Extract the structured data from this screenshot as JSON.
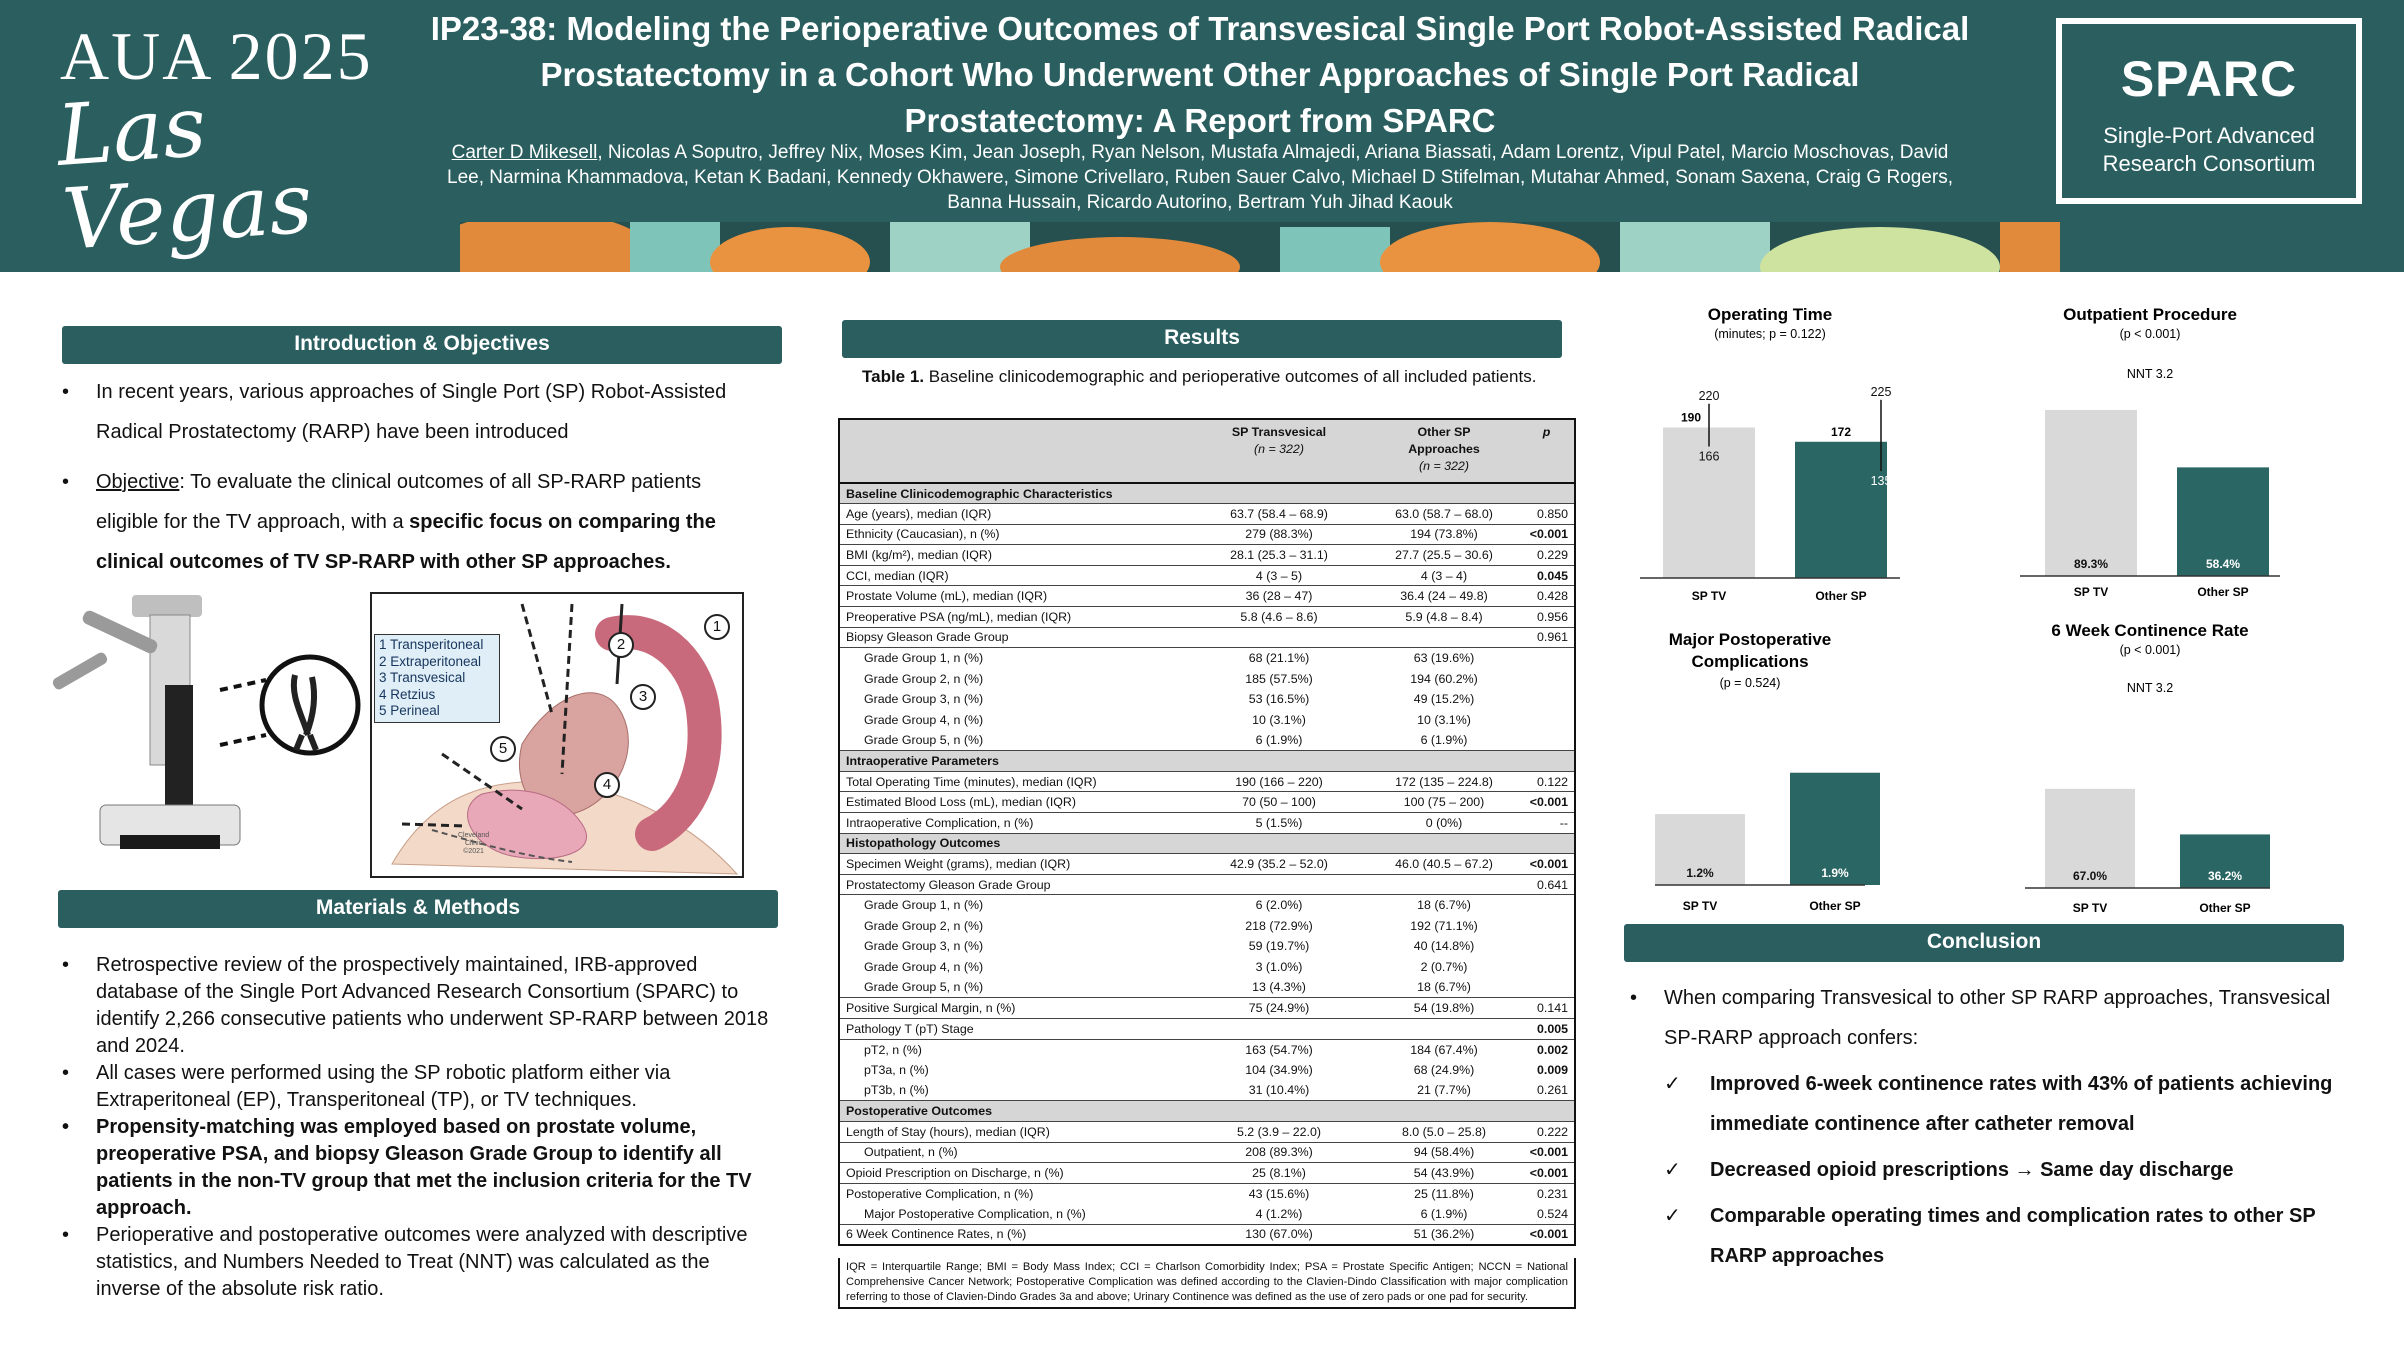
{
  "header": {
    "brand_top": "AUA 2025",
    "brand_bottom": "Las Vegas",
    "title": "IP23-38: Modeling the Perioperative Outcomes of Transvesical Single Port Robot-Assisted Radical Prostatectomy in a Cohort Who Underwent Other Approaches of Single Port Radical Prostatectomy: A Report from SPARC",
    "first_author": "Carter D Mikesell",
    "other_authors": ", Nicolas A Soputro, Jeffrey Nix, Moses Kim, Jean Joseph, Ryan Nelson, Mustafa Almajedi, Ariana Biassati, Adam Lorentz, Vipul Patel, Marcio Moschovas, David Lee, Narmina Khammadova, Ketan K Badani, Kennedy Okhawere, Simone Crivellaro, Ruben Sauer Calvo, Michael D Stifelman, Mutahar Ahmed, Sonam Saxena, Craig G Rogers, Banna Hussain, Ricardo Autorino, Bertram Yuh Jihad Kaouk",
    "sparc_title": "SPARC",
    "sparc_sub_1": "Single-Port Advanced",
    "sparc_sub_2": "Research Consortium"
  },
  "intro": {
    "heading": "Introduction & Objectives",
    "bullet1": "In recent years, various approaches of Single Port (SP) Robot-Assisted Radical Prostatectomy (RARP) have been introduced",
    "objective_label": "Objective",
    "objective_text": ": To evaluate the clinical outcomes of all SP-RARP patients eligible for the TV approach, with a ",
    "objective_bold": "specific focus on comparing the clinical outcomes of TV SP-RARP with other SP approaches."
  },
  "figure": {
    "legend": [
      "1 Transperitoneal",
      "2 Extraperitoneal",
      "3 Transvesical",
      "4 Retzius",
      "5 Perineal"
    ],
    "markers": [
      "1",
      "2",
      "3",
      "4",
      "5"
    ],
    "credit_1": "Cleveland",
    "credit_2": "Clinic",
    "credit_3": "©2021"
  },
  "methods": {
    "heading": "Materials & Methods",
    "b1": "Retrospective review of the prospectively maintained, IRB-approved database of the Single Port Advanced Research Consortium (SPARC) to identify 2,266 consecutive patients who underwent SP-RARP between 2018 and 2024.",
    "b2": "All cases were performed using the SP robotic platform either via Extraperitoneal (EP), Transperitoneal (TP), or TV techniques.",
    "b3": "Propensity-matching was employed based on prostate volume, preoperative PSA, and biopsy Gleason Grade Group to identify all patients in the non-TV group that met the inclusion criteria for the TV approach.",
    "b4": "Perioperative and postoperative outcomes were analyzed with descriptive statistics, and Numbers Needed to Treat (NNT) was calculated as the inverse of the absolute risk ratio."
  },
  "results": {
    "heading": "Results",
    "caption_bold": "Table 1.",
    "caption_text": " Baseline clinicodemographic and perioperative outcomes of all included patients.",
    "col_headers": {
      "c2_line1": "SP Transvesical",
      "c2_line2": "(n = 322)",
      "c3_line1": "Other SP",
      "c3_line2": "Approaches",
      "c3_line3": "(n = 322)",
      "c4": "p"
    },
    "rows": [
      {
        "type": "sec",
        "label": "Baseline Clinicodemographic Characteristics",
        "a": "",
        "b": "",
        "p": "",
        "bold": false
      },
      {
        "type": "row",
        "label": "Age (years), median (IQR)",
        "a": "63.7 (58.4 – 68.9)",
        "b": "63.0 (58.7 – 68.0)",
        "p": "0.850",
        "bold": false
      },
      {
        "type": "row",
        "label": "Ethnicity (Caucasian), n (%)",
        "a": "279 (88.3%)",
        "b": "194 (73.8%)",
        "p": "<0.001",
        "bold": true
      },
      {
        "type": "row",
        "label": "BMI (kg/m²), median (IQR)",
        "a": "28.1 (25.3 – 31.1)",
        "b": "27.7 (25.5 – 30.6)",
        "p": "0.229",
        "bold": false
      },
      {
        "type": "row",
        "label": "CCI, median (IQR)",
        "a": "4 (3 – 5)",
        "b": "4 (3 – 4)",
        "p": "0.045",
        "bold": true
      },
      {
        "type": "row",
        "label": "Prostate Volume (mL), median (IQR)",
        "a": "36 (28 – 47)",
        "b": "36.4 (24 – 49.8)",
        "p": "0.428",
        "bold": false
      },
      {
        "type": "row",
        "label": "Preoperative PSA (ng/mL), median (IQR)",
        "a": "5.8 (4.6 – 8.6)",
        "b": "5.9 (4.8 – 8.4)",
        "p": "0.956",
        "bold": false
      },
      {
        "type": "row",
        "label": "Biopsy Gleason Grade Group",
        "a": "",
        "b": "",
        "p": "0.961",
        "bold": false
      },
      {
        "type": "sub",
        "label": "Grade Group 1, n (%)",
        "a": "68 (21.1%)",
        "b": "63 (19.6%)",
        "p": "",
        "bold": false
      },
      {
        "type": "sub",
        "label": "Grade Group 2, n (%)",
        "a": "185 (57.5%)",
        "b": "194 (60.2%)",
        "p": "",
        "bold": false
      },
      {
        "type": "sub",
        "label": "Grade Group 3, n (%)",
        "a": "53 (16.5%)",
        "b": "49 (15.2%)",
        "p": "",
        "bold": false
      },
      {
        "type": "sub",
        "label": "Grade Group 4, n (%)",
        "a": "10 (3.1%)",
        "b": "10 (3.1%)",
        "p": "",
        "bold": false
      },
      {
        "type": "row",
        "label": "Grade Group 5, n (%)",
        "a": "6 (1.9%)",
        "b": "6 (1.9%)",
        "p": "",
        "bold": false,
        "indent": true
      },
      {
        "type": "sec",
        "label": "Intraoperative Parameters",
        "a": "",
        "b": "",
        "p": "",
        "bold": false
      },
      {
        "type": "row",
        "label": "Total Operating Time (minutes), median (IQR)",
        "a": "190 (166 – 220)",
        "b": "172 (135 – 224.8)",
        "p": "0.122",
        "bold": false
      },
      {
        "type": "row",
        "label": "Estimated Blood Loss (mL), median (IQR)",
        "a": "70 (50 – 100)",
        "b": "100 (75 – 200)",
        "p": "<0.001",
        "bold": true
      },
      {
        "type": "row",
        "label": "Intraoperative Complication, n (%)",
        "a": "5 (1.5%)",
        "b": "0 (0%)",
        "p": "--",
        "bold": false
      },
      {
        "type": "sec",
        "label": "Histopathology Outcomes",
        "a": "",
        "b": "",
        "p": "",
        "bold": false
      },
      {
        "type": "row",
        "label": "Specimen Weight (grams), median (IQR)",
        "a": "42.9 (35.2 – 52.0)",
        "b": "46.0 (40.5 – 67.2)",
        "p": "<0.001",
        "bold": true
      },
      {
        "type": "row",
        "label": "Prostatectomy Gleason Grade Group",
        "a": "",
        "b": "",
        "p": "0.641",
        "bold": false
      },
      {
        "type": "sub",
        "label": "Grade Group 1, n (%)",
        "a": "6 (2.0%)",
        "b": "18 (6.7%)",
        "p": "",
        "bold": false
      },
      {
        "type": "sub",
        "label": "Grade Group 2, n (%)",
        "a": "218 (72.9%)",
        "b": "192 (71.1%)",
        "p": "",
        "bold": false
      },
      {
        "type": "sub",
        "label": "Grade Group 3, n (%)",
        "a": "59 (19.7%)",
        "b": "40 (14.8%)",
        "p": "",
        "bold": false
      },
      {
        "type": "sub",
        "label": "Grade Group 4, n (%)",
        "a": "3 (1.0%)",
        "b": "2 (0.7%)",
        "p": "",
        "bold": false
      },
      {
        "type": "row",
        "label": "Grade Group 5, n (%)",
        "a": "13 (4.3%)",
        "b": "18 (6.7%)",
        "p": "",
        "bold": false,
        "indent": true
      },
      {
        "type": "row",
        "label": "Positive Surgical Margin, n (%)",
        "a": "75 (24.9%)",
        "b": "54 (19.8%)",
        "p": "0.141",
        "bold": false
      },
      {
        "type": "row",
        "label": "Pathology T (pT) Stage",
        "a": "",
        "b": "",
        "p": "0.005",
        "bold": true
      },
      {
        "type": "sub",
        "label": "pT2, n (%)",
        "a": "163 (54.7%)",
        "b": "184 (67.4%)",
        "p": "0.002",
        "bold": true
      },
      {
        "type": "sub",
        "label": "pT3a, n (%)",
        "a": "104 (34.9%)",
        "b": "68 (24.9%)",
        "p": "0.009",
        "bold": true
      },
      {
        "type": "row",
        "label": "pT3b, n (%)",
        "a": "31 (10.4%)",
        "b": "21 (7.7%)",
        "p": "0.261",
        "bold": false,
        "indent": true
      },
      {
        "type": "sec",
        "label": "Postoperative Outcomes",
        "a": "",
        "b": "",
        "p": "",
        "bold": false
      },
      {
        "type": "row",
        "label": "Length of Stay (hours), median (IQR)",
        "a": "5.2 (3.9 – 22.0)",
        "b": "8.0 (5.0 – 25.8)",
        "p": "0.222",
        "bold": false
      },
      {
        "type": "row",
        "label": "Outpatient, n (%)",
        "a": "208 (89.3%)",
        "b": "94 (58.4%)",
        "p": "<0.001",
        "bold": true,
        "indent": true
      },
      {
        "type": "row",
        "label": "Opioid Prescription on Discharge, n (%)",
        "a": "25 (8.1%)",
        "b": "54 (43.9%)",
        "p": "<0.001",
        "bold": true
      },
      {
        "type": "sub",
        "label": "Postoperative Complication, n (%)",
        "a": "43 (15.6%)",
        "b": "25 (11.8%)",
        "p": "0.231",
        "bold": false,
        "noindent": true
      },
      {
        "type": "row",
        "label": "Major Postoperative Complication, n (%)",
        "a": "4 (1.2%)",
        "b": "6 (1.9%)",
        "p": "0.524",
        "bold": false,
        "indent": true
      },
      {
        "type": "row",
        "label": "6 Week Continence Rates, n (%)",
        "a": "130 (67.0%)",
        "b": "51 (36.2%)",
        "p": "<0.001",
        "bold": true
      }
    ],
    "footnote": "IQR = Interquartile Range; BMI = Body Mass Index; CCI = Charlson Comorbidity Index; PSA = Prostate Specific Antigen; NCCN = National Comprehensive Cancer Network; Postoperative Complication was defined according to the Clavien-Dindo Classification with major complication referring to those of Clavien-Dindo Grades 3a and above; Urinary Continence was defined as the use of zero pads or one pad for security."
  },
  "colors": {
    "teal": "#2a5e5f",
    "grey_bar": "#d9d9d9",
    "bar_other": "#2a6663"
  },
  "chart_data": [
    {
      "type": "bar",
      "title": "Operating Time",
      "subtitle": "(minutes; p = 0.122)",
      "categories": [
        "SP TV",
        "Other SP"
      ],
      "values": [
        190,
        172
      ],
      "q1": [
        166,
        135
      ],
      "q3": [
        220,
        225
      ],
      "ylim": [
        0,
        250
      ]
    },
    {
      "type": "bar",
      "title": "Outpatient Procedure",
      "subtitle": "(p < 0.001)",
      "note": "NNT 3.2",
      "categories": [
        "SP TV",
        "Other SP"
      ],
      "values": [
        89.3,
        58.4
      ],
      "value_labels": [
        "89.3%",
        "58.4%"
      ],
      "ylim": [
        0,
        100
      ]
    },
    {
      "type": "bar",
      "title": "Major Postoperative Complications",
      "subtitle": "(p = 0.524)",
      "categories": [
        "SP TV",
        "Other SP"
      ],
      "values": [
        1.2,
        1.9
      ],
      "value_labels": [
        "1.2%",
        "1.9%"
      ],
      "ylim": [
        0,
        2.2
      ]
    },
    {
      "type": "bar",
      "title": "6 Week Continence Rate",
      "subtitle": "(p < 0.001)",
      "note": "NNT 3.2",
      "categories": [
        "SP TV",
        "Other SP"
      ],
      "values": [
        67.0,
        36.2
      ],
      "value_labels": [
        "67.0%",
        "36.2%"
      ],
      "ylim": [
        0,
        100
      ]
    }
  ],
  "conclusion": {
    "heading": "Conclusion",
    "intro": "When comparing Transvesical to other SP RARP approaches, Transvesical SP-RARP approach confers:",
    "points": [
      "Improved 6-week continence rates with 43% of patients achieving immediate continence after catheter removal",
      "Decreased opioid prescriptions → Same day discharge",
      "Comparable operating times and complication rates to other SP RARP approaches"
    ]
  }
}
